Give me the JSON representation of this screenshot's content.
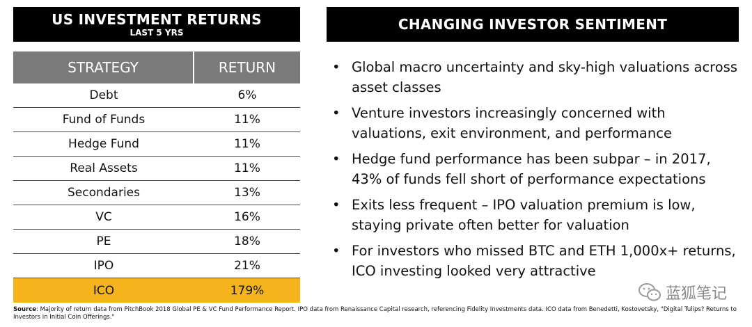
{
  "left_panel": {
    "title": "US INVESTMENT RETURNS",
    "subtitle": "LAST 5 YRS",
    "table": {
      "headers": [
        "STRATEGY",
        "RETURN"
      ],
      "rows": [
        {
          "strategy": "Debt",
          "return": "6%"
        },
        {
          "strategy": "Fund of Funds",
          "return": "11%"
        },
        {
          "strategy": "Hedge Fund",
          "return": "11%"
        },
        {
          "strategy": "Real Assets",
          "return": "11%"
        },
        {
          "strategy": "Secondaries",
          "return": "13%"
        },
        {
          "strategy": "VC",
          "return": "16%"
        },
        {
          "strategy": "PE",
          "return": "18%"
        },
        {
          "strategy": "IPO",
          "return": "21%"
        },
        {
          "strategy": "ICO",
          "return": "179%"
        }
      ]
    }
  },
  "right_panel": {
    "title": "CHANGING INVESTOR SENTIMENT",
    "bullets": [
      "Global macro uncertainty and sky-high valuations across asset classes",
      "Venture investors increasingly concerned with valuations, exit environment, and performance",
      "Hedge fund performance has been subpar – in 2017, 43% of funds fell short of performance expectations",
      "Exits less frequent – IPO valuation premium is low, staying private often better for valuation",
      "For investors who missed BTC and ETH 1,000x+ returns, ICO investing looked very attractive"
    ]
  },
  "watermark": "蓝狐笔记",
  "source": {
    "label": "Source",
    "text": ": Majority of return data from PitchBook 2018 Global PE & VC Fund Performance Report. IPO data from Renaissance Capital research, referencing Fidelity Investments data. ICO data from Benedetti, Kostovetsky, \"Digital Tulips? Returns to Investors in Initial Coin Offerings.\""
  },
  "colors": {
    "header_bg": "#000000",
    "table_header_bg": "#7a7a7a",
    "highlight": "#f5b31c"
  }
}
